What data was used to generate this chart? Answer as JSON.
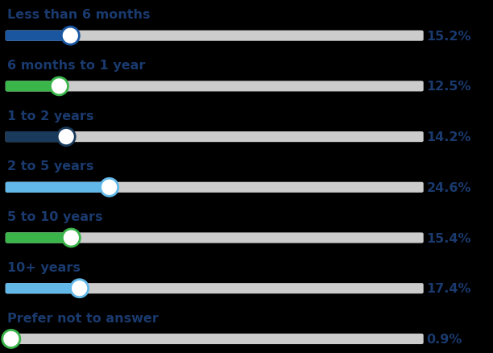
{
  "categories": [
    "Less than 6 months",
    "6 months to 1 year",
    "1 to 2 years",
    "2 to 5 years",
    "5 to 10 years",
    "10+ years",
    "Prefer not to answer"
  ],
  "values": [
    15.2,
    12.5,
    14.2,
    24.6,
    15.4,
    17.4,
    0.9
  ],
  "bar_colors": [
    "#1a56a0",
    "#3ab54a",
    "#1a3a5c",
    "#62b8e8",
    "#3ab54a",
    "#62b8e8",
    "#3ab54a"
  ],
  "max_value": 100,
  "background_color": "#000000",
  "track_color": "#cccccc",
  "text_color": "#1a3a6e",
  "value_color": "#1a3a6e",
  "title_fontsize": 11.5,
  "value_fontsize": 11.5,
  "fig_width": 6.12,
  "fig_height": 4.39
}
